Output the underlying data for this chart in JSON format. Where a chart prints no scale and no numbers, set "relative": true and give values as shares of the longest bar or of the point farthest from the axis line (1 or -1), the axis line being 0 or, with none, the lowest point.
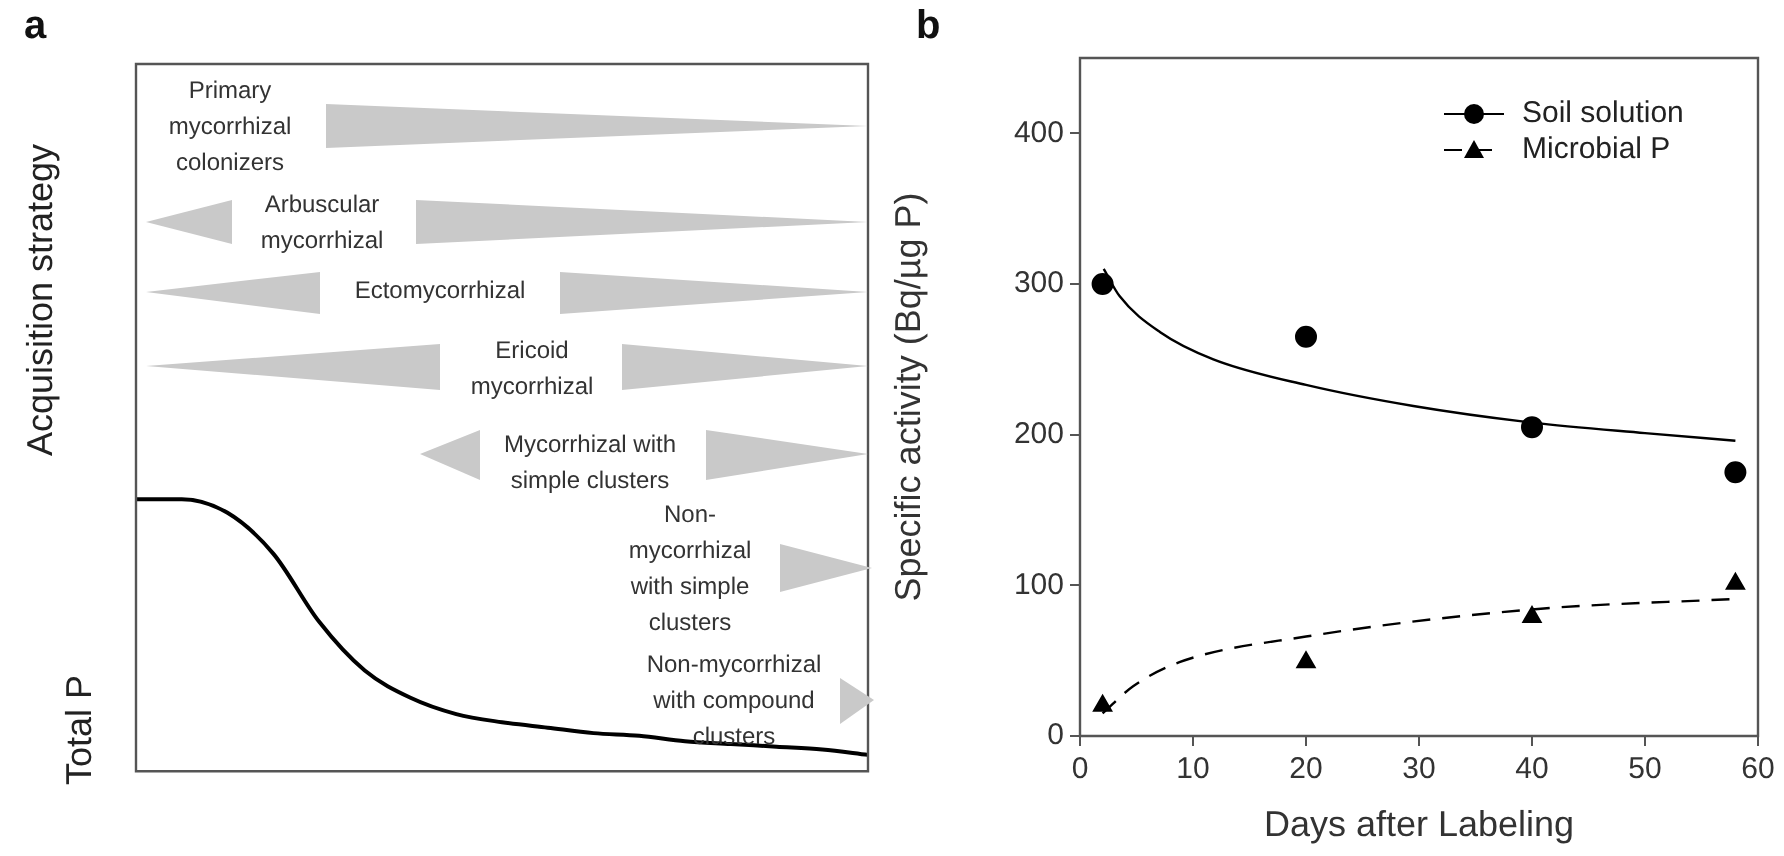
{
  "chart_data": [
    {
      "type": "line",
      "title": "a",
      "ylabel": "Total P",
      "relative": true,
      "categories": [
        null,
        null,
        null,
        null,
        null,
        null,
        null,
        null,
        null,
        null,
        null,
        null,
        null,
        null,
        null,
        null,
        null
      ],
      "series": [
        {
          "color": "#000000",
          "values": [
            1,
            1,
            0.95,
            0.8,
            0.55,
            0.37,
            0.27,
            0.21,
            0.18,
            0.16,
            0.14,
            0.13,
            0.11,
            0.1,
            0.09,
            0.08,
            0.06
          ]
        }
      ],
      "annotations": [
        "Acquisition strategy",
        "Primary mycorrhizal colonizers",
        "Arbuscular mycorrhizal",
        "Ectomycorrhizal",
        "Ericoid mycorrhizal",
        "Mycorrhizal with simple clusters",
        "Non-mycorrhizal with simple clusters",
        "Non-mycorrhizal with compound clusters"
      ]
    },
    {
      "type": "scatter",
      "title": "b",
      "xlabel": "Days after Labeling",
      "ylabel": "Specific activity (Bq/µg P)",
      "legend": "top right",
      "xlim": [
        0,
        60
      ],
      "xticks": [
        0,
        10,
        20,
        30,
        40,
        50,
        60
      ],
      "ylim": [
        0,
        450
      ],
      "yticks": [
        0,
        100,
        200,
        300,
        400
      ],
      "series": [
        {
          "name": "Soil solution",
          "type": "scatter",
          "marker": "circle",
          "line_style": "solid",
          "color": "#000000",
          "x": [
            2,
            20,
            40,
            58
          ],
          "values": [
            300,
            265,
            205,
            175
          ]
        },
        {
          "name": "Microbial P",
          "type": "scatter",
          "marker": "triangle",
          "line_style": "dashed",
          "color": "#000000",
          "x": [
            2,
            20,
            40,
            58
          ],
          "values": [
            20,
            49,
            79,
            101
          ]
        },
        {
          "type": "line",
          "marker": "none",
          "line_style": "solid",
          "color": "#000000",
          "x": [
            2.1,
            3.5,
            7.1,
            11.8,
            20,
            29.5,
            40,
            50,
            58
          ],
          "values": [
            310,
            292,
            268,
            250,
            233,
            219,
            208,
            201,
            196
          ]
        },
        {
          "type": "line",
          "marker": "none",
          "line_style": "dashed",
          "color": "#000000",
          "x": [
            2,
            4.7,
            8.8,
            20,
            40,
            58
          ],
          "values": [
            15,
            33,
            49,
            66,
            84,
            91
          ]
        }
      ]
    }
  ]
}
